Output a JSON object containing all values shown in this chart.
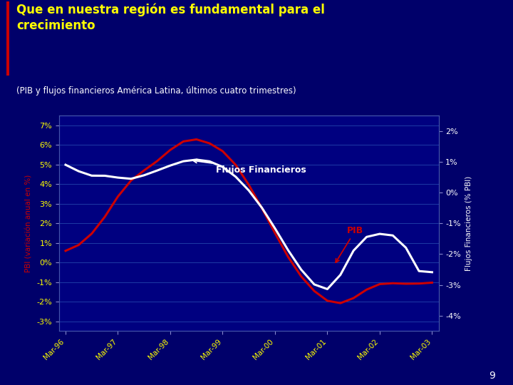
{
  "title": "Que en nuestra región es fundamental para el\ncrecimiento",
  "subtitle": "(PIB y flujos financieros América Latina, últimos cuatro trimestres)",
  "title_color": "#FFFF00",
  "subtitle_color": "#FFFFFF",
  "background_color": "#00006A",
  "plot_bg_color": "#000080",
  "header_bg_color": "#00003A",
  "red_bar_color": "#CC0000",
  "xlabel_ticks": [
    "Mar-96",
    "Mar-97",
    "Mar-98",
    "Mar-99",
    "Mar-00",
    "Mar-01",
    "Mar-02",
    "Mar-03"
  ],
  "pib_color": "#CC0000",
  "flujos_color": "#FFFFFF",
  "pib_label": "PIB",
  "flujos_label": "Flujos Financieros",
  "left_ylabel": "PBI (variación anual en %)",
  "right_ylabel": "Flujos Financieros (% PBI)",
  "left_yticks": [
    -3,
    -2,
    -1,
    0,
    1,
    2,
    3,
    4,
    5,
    6,
    7
  ],
  "right_yticks": [
    -4,
    -3,
    -2,
    -1,
    0,
    1,
    2
  ],
  "left_ylim": [
    -3.5,
    7.5
  ],
  "right_ylim": [
    -4.5,
    2.5
  ],
  "pib_x": [
    0,
    1,
    2,
    3,
    4,
    5,
    6,
    7,
    8,
    9,
    10,
    11,
    12,
    13,
    14,
    15,
    16,
    17,
    18,
    19,
    20,
    21,
    22,
    23,
    24,
    25,
    26,
    27,
    28
  ],
  "pib_y": [
    0.5,
    0.8,
    1.4,
    2.2,
    3.5,
    4.3,
    4.7,
    5.1,
    5.8,
    6.3,
    6.4,
    6.1,
    5.8,
    5.1,
    4.0,
    2.8,
    1.5,
    0.2,
    -0.8,
    -1.5,
    -2.1,
    -2.2,
    -1.9,
    -1.3,
    -1.0,
    -1.05,
    -1.1,
    -1.1,
    -1.0
  ],
  "flujos_x": [
    0,
    1,
    2,
    3,
    4,
    5,
    6,
    7,
    8,
    9,
    10,
    11,
    12,
    13,
    14,
    15,
    16,
    17,
    18,
    19,
    20,
    21,
    22,
    23,
    24,
    25,
    26,
    27,
    28
  ],
  "flujos_y": [
    1.0,
    0.65,
    0.45,
    0.62,
    0.48,
    0.35,
    0.58,
    0.7,
    0.88,
    1.05,
    1.1,
    1.05,
    0.88,
    0.55,
    0.1,
    -0.45,
    -1.15,
    -1.9,
    -2.55,
    -3.05,
    -3.4,
    -2.85,
    -1.65,
    -1.35,
    -1.3,
    -1.4,
    -1.3,
    -3.25,
    -2.4
  ],
  "page_number": "9",
  "grid_color": "#2244AA",
  "tick_label_color": "#FFFF00",
  "tick_label_color_right": "#FFFFFF"
}
